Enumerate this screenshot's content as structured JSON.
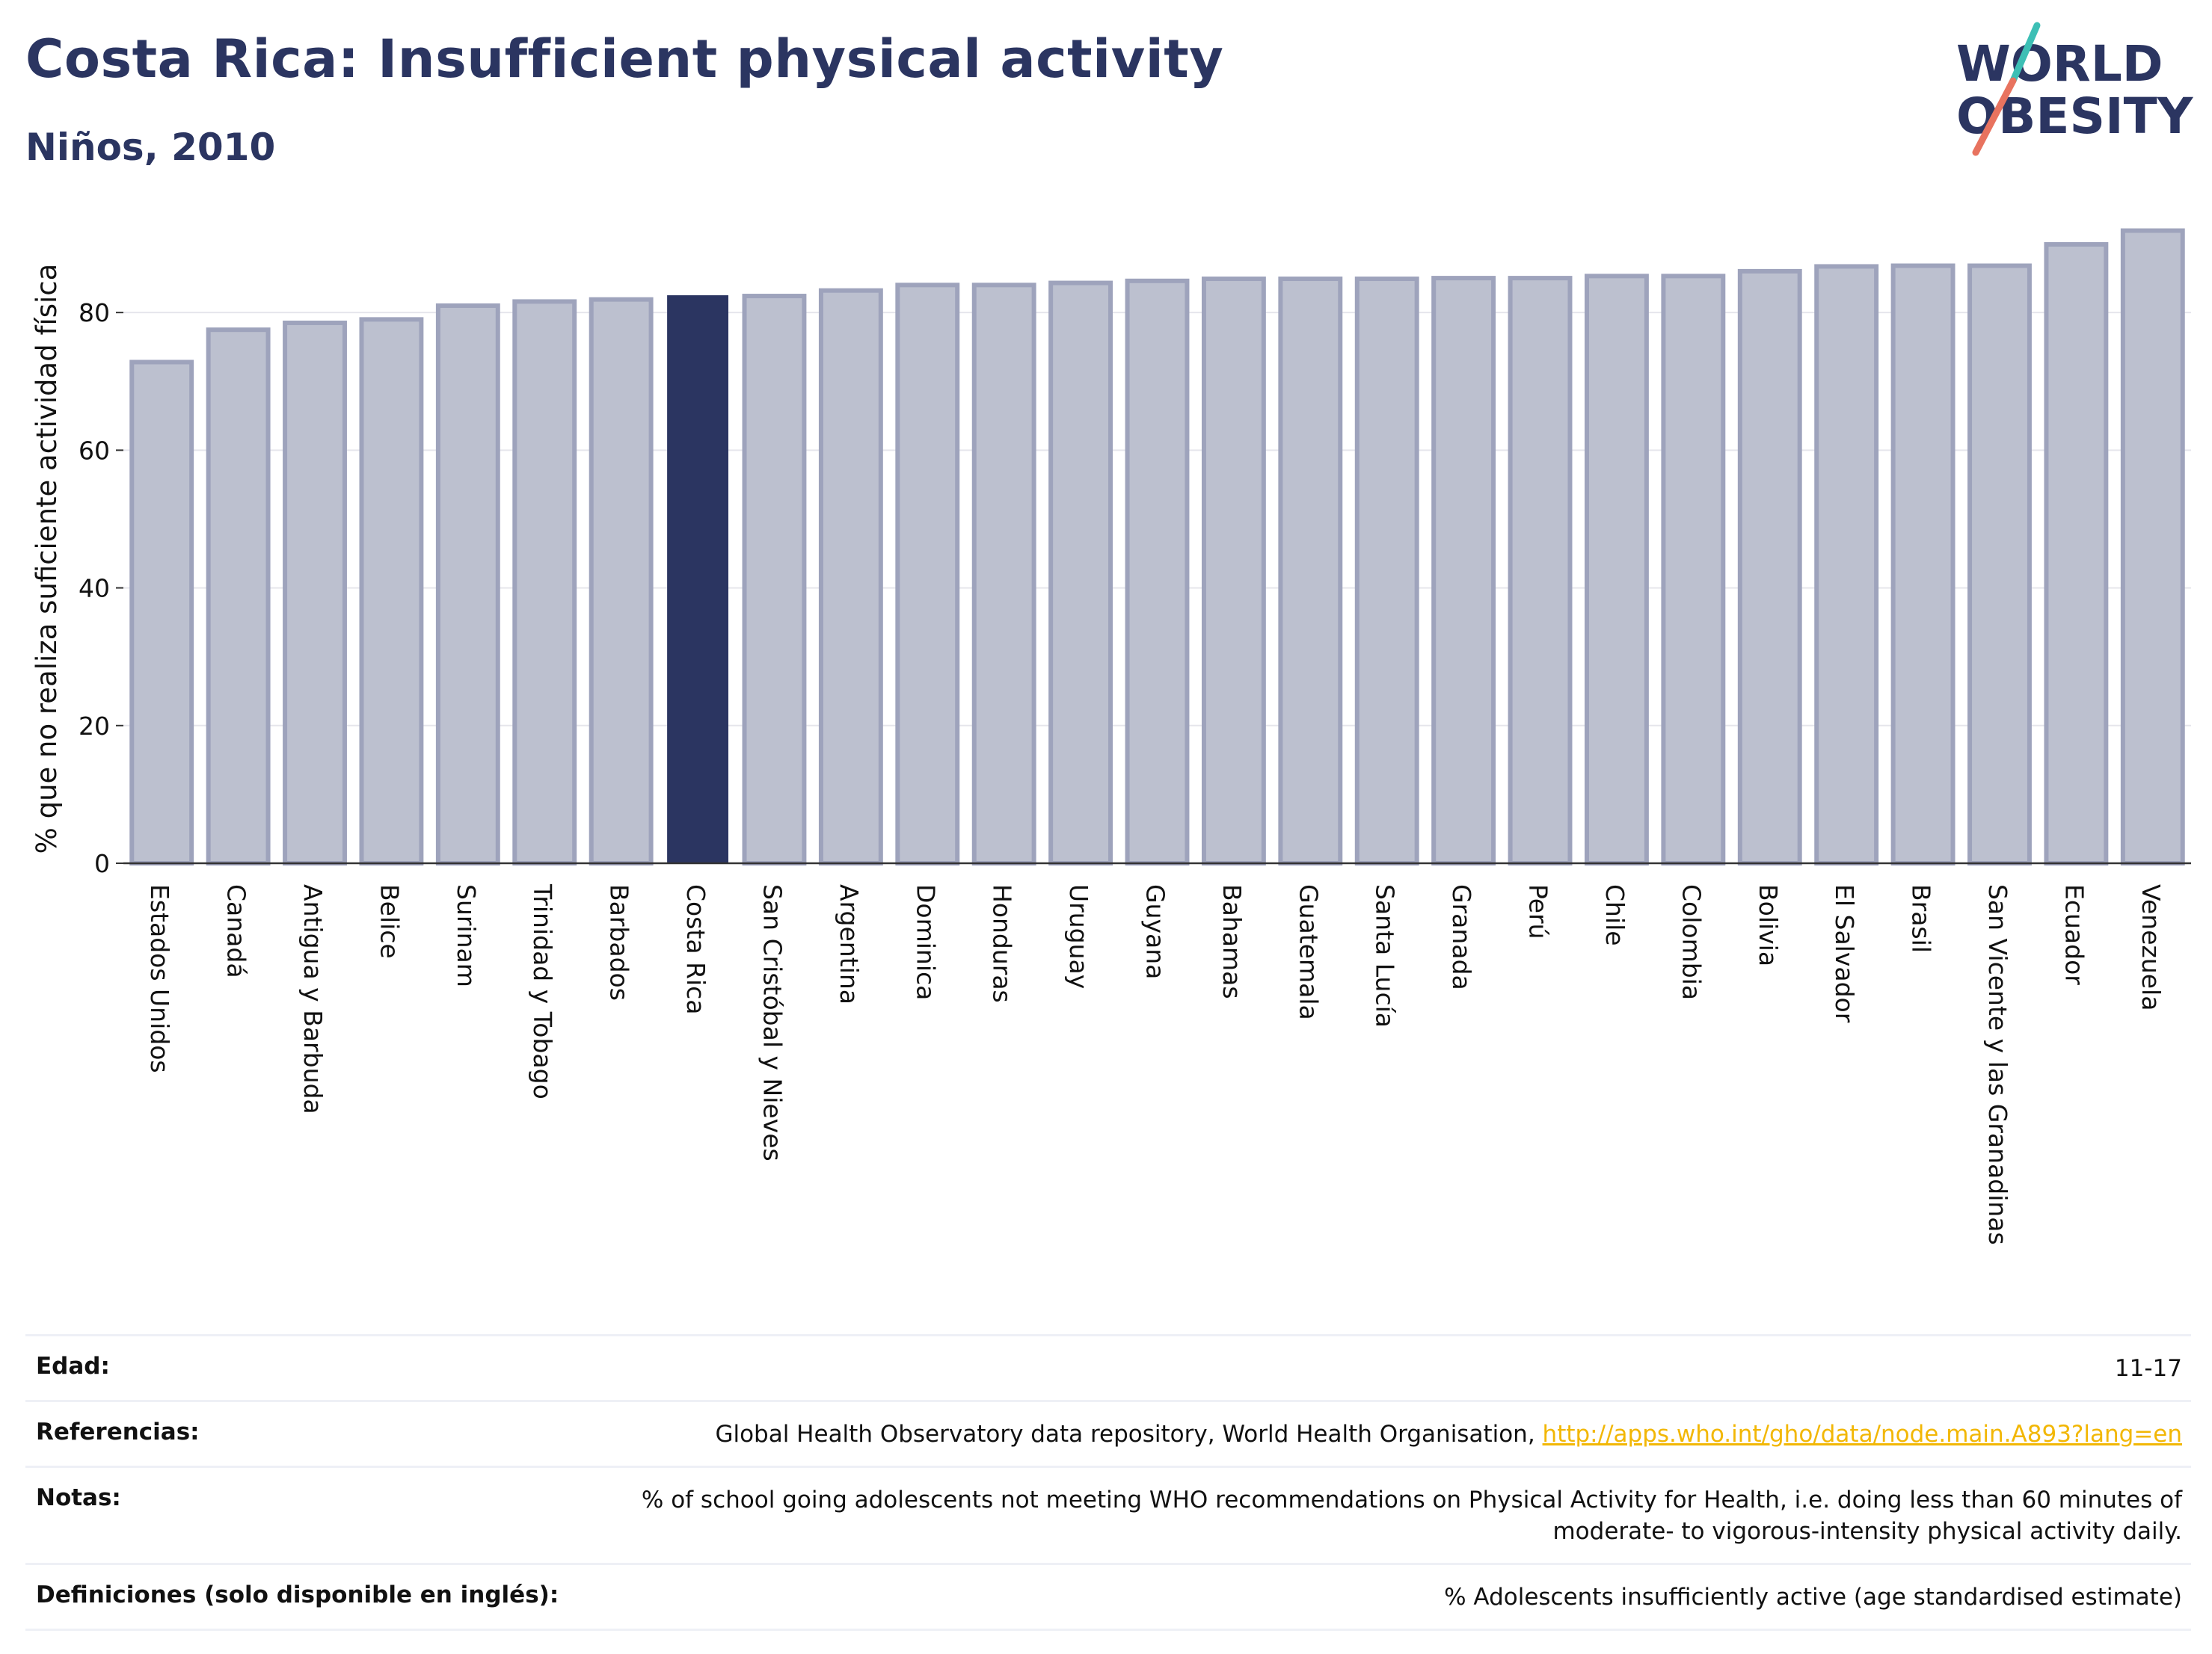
{
  "header": {
    "title": "Costa Rica: Insufficient physical activity",
    "subtitle": "Niños, 2010"
  },
  "logo": {
    "line1": "WORLD",
    "line2": "OBESITY"
  },
  "colors": {
    "title": "#2b3561",
    "highlight_bar": "#2b3561",
    "bar_fill": "#bcc0cf",
    "bar_stroke": "#9ea3bc",
    "logo_teal": "#3dbfb5",
    "logo_coral": "#e8735f",
    "link": "#f2b705"
  },
  "chart_data": {
    "type": "bar",
    "ylabel": "% que no realiza suficiente actividad física",
    "ylim": [
      0,
      95
    ],
    "yticks": [
      0,
      20,
      40,
      60,
      80
    ],
    "grid": true,
    "highlight": "Costa Rica",
    "categories": [
      "Estados Unidos",
      "Canadá",
      "Antigua y Barbuda",
      "Belice",
      "Surinam",
      "Trinidad y Tobago",
      "Barbados",
      "Costa Rica",
      "San Cristóbal y Nieves",
      "Argentina",
      "Dominica",
      "Honduras",
      "Uruguay",
      "Guyana",
      "Bahamas",
      "Guatemala",
      "Santa Lucía",
      "Granada",
      "Perú",
      "Chile",
      "Colombia",
      "Bolivia",
      "El Salvador",
      "Brasil",
      "San Vicente y las Granadinas",
      "Ecuador",
      "Venezuela"
    ],
    "values": [
      72.8,
      77.5,
      78.5,
      79.0,
      81.0,
      81.6,
      81.9,
      82.4,
      82.4,
      83.2,
      84.0,
      84.0,
      84.3,
      84.6,
      84.9,
      84.9,
      84.9,
      85.0,
      85.0,
      85.3,
      85.3,
      86.0,
      86.7,
      86.8,
      86.8,
      89.9,
      91.9
    ]
  },
  "meta": {
    "rows": [
      {
        "label": "Edad:",
        "value": "11-17"
      },
      {
        "label": "Referencias:",
        "value": "Global Health Observatory data repository, World Health Organisation, ",
        "link": "http://apps.who.int/gho/data/node.main.A893?lang=en"
      },
      {
        "label": "Notas:",
        "value": "% of school going adolescents not meeting WHO recommendations on Physical Activity for Health, i.e. doing less than 60 minutes of moderate- to vigorous-intensity physical activity daily."
      },
      {
        "label": "Definiciones (solo disponible en inglés):",
        "value": "% Adolescents insufficiently active (age standardised estimate)"
      }
    ]
  }
}
